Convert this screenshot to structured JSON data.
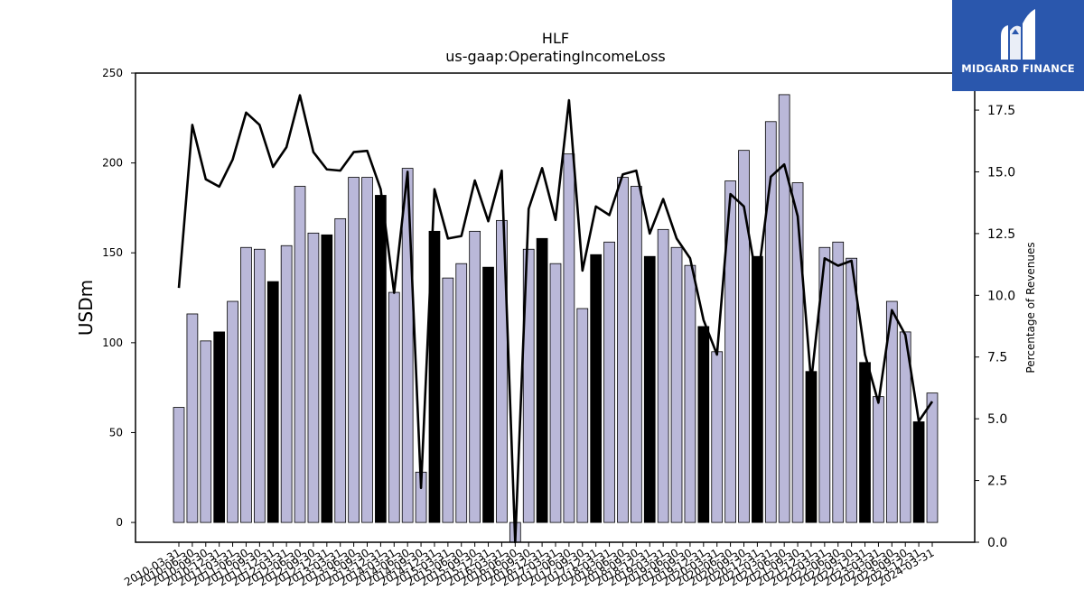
{
  "chart_data": {
    "type": "bar",
    "title": "HLF",
    "subtitle": "us-gaap:OperatingIncomeLoss",
    "ylabel": "USDm",
    "y2label": "Percentage of Revenues",
    "ylim": [
      -11,
      250
    ],
    "y2lim": [
      0,
      19
    ],
    "yticks": [
      0,
      50,
      100,
      150,
      200,
      250
    ],
    "y2ticks": [
      "0.0",
      "2.5",
      "5.0",
      "7.5",
      "10.0",
      "12.5",
      "15.0",
      "17.5"
    ],
    "categories": [
      "2010-03-31",
      "2010-06-30",
      "2010-09-30",
      "2010-12-31",
      "2011-03-31",
      "2011-06-30",
      "2011-09-30",
      "2011-12-31",
      "2012-03-31",
      "2012-06-30",
      "2012-09-30",
      "2012-12-31",
      "2013-03-31",
      "2013-06-30",
      "2013-09-30",
      "2013-12-31",
      "2014-03-31",
      "2014-06-30",
      "2014-09-30",
      "2014-12-31",
      "2015-03-31",
      "2015-06-30",
      "2015-09-30",
      "2015-12-31",
      "2016-03-31",
      "2016-06-30",
      "2016-09-30",
      "2016-12-31",
      "2017-03-31",
      "2017-06-30",
      "2017-09-30",
      "2017-12-31",
      "2018-03-31",
      "2018-06-30",
      "2018-09-30",
      "2018-12-31",
      "2019-03-31",
      "2019-06-30",
      "2019-09-30",
      "2019-12-31",
      "2020-03-31",
      "2020-06-30",
      "2020-09-30",
      "2020-12-31",
      "2021-03-31",
      "2021-06-30",
      "2021-09-30",
      "2021-12-31",
      "2022-03-31",
      "2022-06-30",
      "2022-09-30",
      "2022-12-31",
      "2023-03-31",
      "2023-06-30",
      "2023-09-30",
      "2023-12-31",
      "2024-03-31"
    ],
    "series": [
      {
        "values": [
          64,
          116,
          101,
          106,
          123,
          153,
          152,
          134,
          154,
          187,
          161,
          160,
          169,
          192,
          192,
          182,
          128,
          197,
          28,
          162,
          136,
          144,
          162,
          142,
          168,
          -11,
          152,
          158,
          144,
          205,
          119,
          149,
          156,
          192,
          187,
          148,
          163,
          153,
          143,
          109,
          95,
          190,
          207,
          148,
          223,
          238,
          189,
          84,
          153,
          156,
          147,
          89,
          70,
          123,
          106,
          56,
          72
        ]
      },
      {
        "axis": "right",
        "type": "line",
        "values": [
          10.3,
          16.9,
          14.7,
          14.4,
          15.5,
          17.4,
          16.9,
          15.2,
          16.0,
          18.1,
          15.8,
          15.1,
          15.05,
          15.8,
          15.85,
          14.3,
          10.1,
          15.0,
          2.2,
          14.3,
          12.3,
          12.4,
          14.65,
          13.0,
          15.05,
          0.0,
          13.5,
          15.15,
          13.05,
          17.9,
          11.0,
          13.6,
          13.25,
          14.9,
          15.05,
          12.5,
          13.9,
          12.3,
          11.5,
          9.0,
          7.6,
          14.1,
          13.6,
          10.5,
          14.8,
          15.3,
          13.2,
          6.5,
          11.5,
          11.2,
          11.4,
          7.6,
          5.65,
          9.4,
          8.4,
          4.9,
          5.7
        ]
      }
    ],
    "highlight_every": 4,
    "highlight_offset": 3,
    "colors": {
      "bar": "#bab8d9",
      "bar_highlight": "#000000",
      "line": "#000000"
    },
    "grid": false
  },
  "logo": {
    "text": "MIDGARD FINANCE",
    "bg": "#2a57ad"
  }
}
